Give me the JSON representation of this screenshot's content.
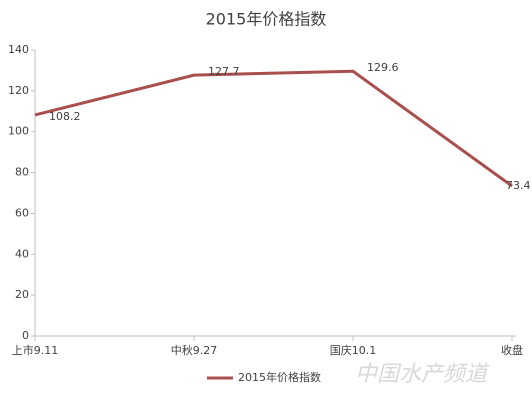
{
  "chart_data": {
    "type": "line",
    "title": "2015年价格指数",
    "categories": [
      "上市9.11",
      "中秋9.27",
      "国庆10.1",
      "收盘"
    ],
    "series": [
      {
        "name": "2015年价格指数",
        "color": "#a9504e",
        "values": [
          108.2,
          127.7,
          129.6,
          73.4
        ]
      }
    ],
    "ylim": [
      0,
      140
    ],
    "yticks": [
      0,
      20,
      40,
      60,
      80,
      100,
      120,
      140
    ],
    "grid": false,
    "legend": "bottom",
    "watermark": "中国水产频道"
  }
}
